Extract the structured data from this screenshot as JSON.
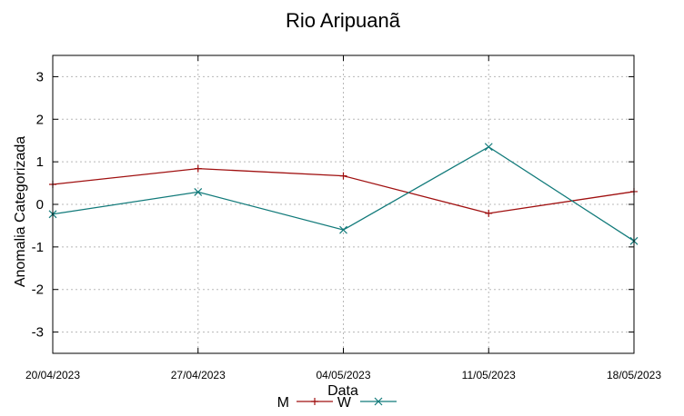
{
  "chart_data": {
    "type": "line",
    "title": "Rio Aripuanã",
    "xlabel": "Data",
    "ylabel": "Anomalia Categorizada",
    "categories": [
      "20/04/2023",
      "27/04/2023",
      "04/05/2023",
      "11/05/2023",
      "18/05/2023"
    ],
    "ylim": [
      -3.5,
      3.5
    ],
    "yticks": [
      3,
      2,
      1,
      0,
      -1,
      -2,
      -3
    ],
    "grid": true,
    "legend_position": "bottom-center",
    "series": [
      {
        "name": "M",
        "color": "#a01010",
        "marker": "plus",
        "values": [
          0.47,
          0.84,
          0.67,
          -0.21,
          0.3
        ]
      },
      {
        "name": "W",
        "color": "#117a7a",
        "marker": "cross",
        "values": [
          -0.23,
          0.29,
          -0.6,
          1.35,
          -0.86
        ]
      }
    ]
  }
}
